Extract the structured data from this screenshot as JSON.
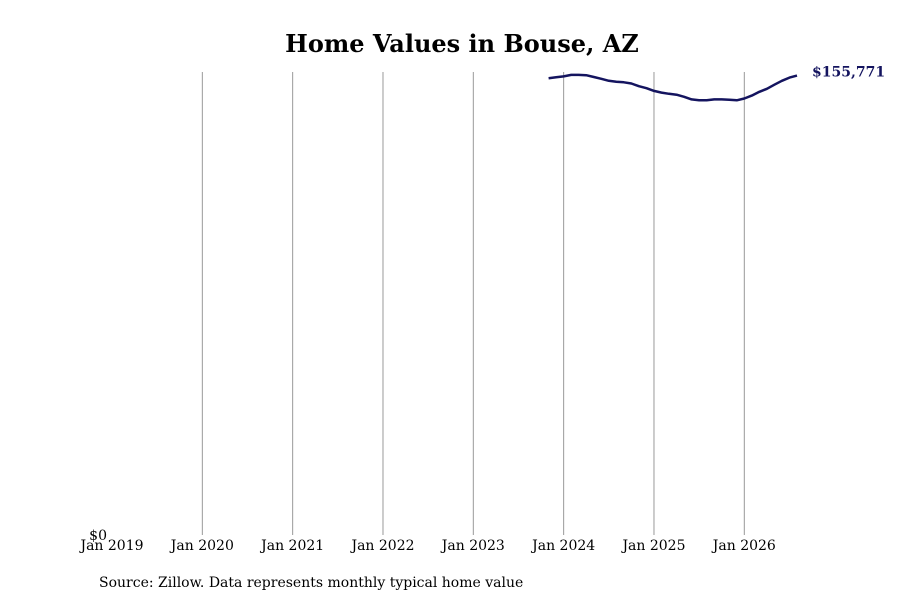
{
  "chart_data": {
    "type": "line",
    "title": "Home Values in Bouse, AZ",
    "x": [
      "2023-11",
      "2023-12",
      "2024-01",
      "2024-02",
      "2024-03",
      "2024-04",
      "2024-05",
      "2024-06",
      "2024-07",
      "2024-08",
      "2024-09",
      "2024-10",
      "2024-11",
      "2024-12",
      "2025-01",
      "2025-02",
      "2025-03",
      "2025-04",
      "2025-05",
      "2025-06",
      "2025-07",
      "2025-08",
      "2025-09",
      "2025-10",
      "2025-11",
      "2025-12",
      "2026-01",
      "2026-02",
      "2026-03",
      "2026-04",
      "2026-05",
      "2026-06",
      "2026-07",
      "2026-08"
    ],
    "series": [
      {
        "name": "Home value",
        "color": "#14145f",
        "values": [
          154900,
          155200,
          155500,
          156000,
          156000,
          155900,
          155300,
          154700,
          154000,
          153700,
          153500,
          153100,
          152200,
          151500,
          150600,
          150000,
          149600,
          149300,
          148600,
          147700,
          147400,
          147400,
          147700,
          147700,
          147600,
          147400,
          148000,
          149000,
          150300,
          151300,
          152700,
          154000,
          155100,
          155771
        ],
        "end_label": "$155,771"
      }
    ],
    "xlim": [
      "2019-01",
      "2026-08"
    ],
    "xticks": [
      {
        "value": "2019-01",
        "label": "Jan 2019"
      },
      {
        "value": "2020-01",
        "label": "Jan 2020"
      },
      {
        "value": "2021-01",
        "label": "Jan 2021"
      },
      {
        "value": "2022-01",
        "label": "Jan 2022"
      },
      {
        "value": "2023-01",
        "label": "Jan 2023"
      },
      {
        "value": "2024-01",
        "label": "Jan 2024"
      },
      {
        "value": "2025-01",
        "label": "Jan 2025"
      },
      {
        "value": "2026-01",
        "label": "Jan 2026"
      }
    ],
    "ylim": [
      0,
      157000
    ],
    "yticks": [
      {
        "value": 0,
        "label": "$0"
      }
    ],
    "grid": "x",
    "source": "Source: Zillow. Data represents monthly typical home value"
  }
}
